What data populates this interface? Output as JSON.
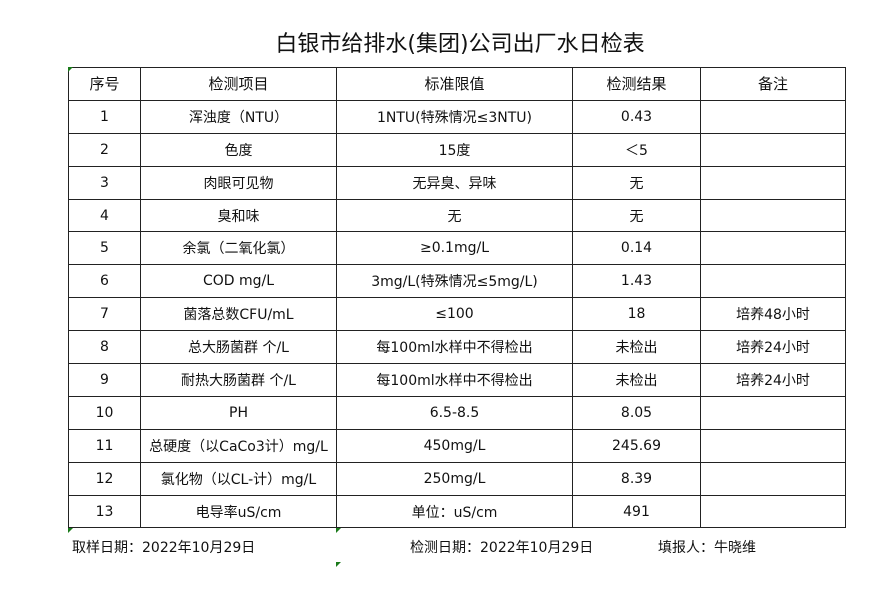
{
  "title": "白银市给排水(集团)公司出厂水日检表",
  "headers": [
    "序号",
    "检测项目",
    "标准限值",
    "检测结果",
    "备注"
  ],
  "rows": [
    [
      "1",
      "浑浊度（NTU）",
      "1NTU(特殊情况≤3NTU)",
      "0.43",
      ""
    ],
    [
      "2",
      "色度",
      "15度",
      "＜5",
      ""
    ],
    [
      "3",
      "肉眼可见物",
      "无异臭、异味",
      "无",
      ""
    ],
    [
      "4",
      "臭和味",
      "无",
      "无",
      ""
    ],
    [
      "5",
      "余氯（二氧化氯）",
      "≥0.1mg/L",
      "0.14",
      ""
    ],
    [
      "6",
      "COD         mg/L",
      "3mg/L(特殊情况≤5mg/L)",
      "1.43",
      ""
    ],
    [
      "7",
      "菌落总数CFU/mL",
      "≤100",
      "18",
      "培养48小时"
    ],
    [
      "8",
      "总大肠菌群 个/L",
      "每100ml水样中不得检出",
      "未检出",
      "培养24小时"
    ],
    [
      "9",
      "耐热大肠菌群 个/L",
      "每100ml水样中不得检出",
      "未检出",
      "培养24小时"
    ],
    [
      "10",
      "PH",
      "6.5-8.5",
      "8.05",
      ""
    ],
    [
      "11",
      "总硬度（以CaCo3计）mg/L",
      "450mg/L",
      "245.69",
      ""
    ],
    [
      "12",
      "氯化物（以CL-计）mg/L",
      "250mg/L",
      "8.39",
      ""
    ],
    [
      "13",
      "电导率uS/cm",
      "单位：uS/cm",
      "491",
      ""
    ]
  ],
  "footer": {
    "sample_date": "取样日期：2022年10月29日",
    "test_date": "检测日期：2022年10月29日",
    "filler": "填报人：牛晓维"
  }
}
